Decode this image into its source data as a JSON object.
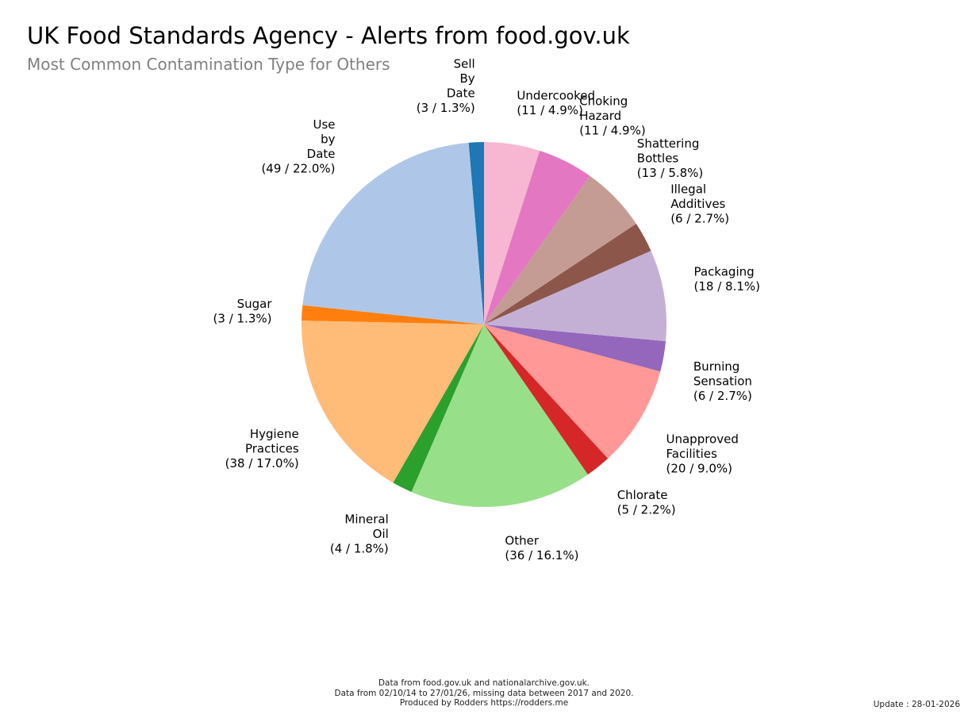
{
  "title": "UK Food Standards Agency - Alerts from food.gov.uk",
  "subtitle": "Most Common Contamination Type for Others",
  "chart_data": {
    "type": "pie",
    "start_angle_deg": 90,
    "direction": "counterclockwise",
    "slices": [
      {
        "label": "Sell\nBy\nDate",
        "value": 3,
        "percent": "1.3%",
        "color": "#1f77b4"
      },
      {
        "label": "Use\nby\nDate",
        "value": 49,
        "percent": "22.0%",
        "color": "#aec7e8"
      },
      {
        "label": "Sugar",
        "value": 3,
        "percent": "1.3%",
        "color": "#ff7f0e"
      },
      {
        "label": "Hygiene\nPractices",
        "value": 38,
        "percent": "17.0%",
        "color": "#ffbb78"
      },
      {
        "label": "Mineral\nOil",
        "value": 4,
        "percent": "1.8%",
        "color": "#2ca02c"
      },
      {
        "label": "Other",
        "value": 36,
        "percent": "16.1%",
        "color": "#98df8a"
      },
      {
        "label": "Chlorate",
        "value": 5,
        "percent": "2.2%",
        "color": "#d62728"
      },
      {
        "label": "Unapproved\nFacilities",
        "value": 20,
        "percent": "9.0%",
        "color": "#ff9896"
      },
      {
        "label": "Burning\nSensation",
        "value": 6,
        "percent": "2.7%",
        "color": "#9467bd"
      },
      {
        "label": "Packaging",
        "value": 18,
        "percent": "8.1%",
        "color": "#c5b0d5"
      },
      {
        "label": "Illegal\nAdditives",
        "value": 6,
        "percent": "2.7%",
        "color": "#8c564b"
      },
      {
        "label": "Shattering\nBottles",
        "value": 13,
        "percent": "5.8%",
        "color": "#c49c94"
      },
      {
        "label": "Choking\nHazard",
        "value": 11,
        "percent": "4.9%",
        "color": "#e377c2"
      },
      {
        "label": "Undercooked",
        "value": 11,
        "percent": "4.9%",
        "color": "#f7b6d2"
      }
    ]
  },
  "footer": {
    "line1": "Data from food.gov.uk and nationalarchive.gov.uk.",
    "line2": "Data from 02/10/14 to 27/01/26, missing data between 2017 and 2020.",
    "line3": "Produced by Rodders https://rodders.me"
  },
  "update": "Update : 28-01-2026"
}
